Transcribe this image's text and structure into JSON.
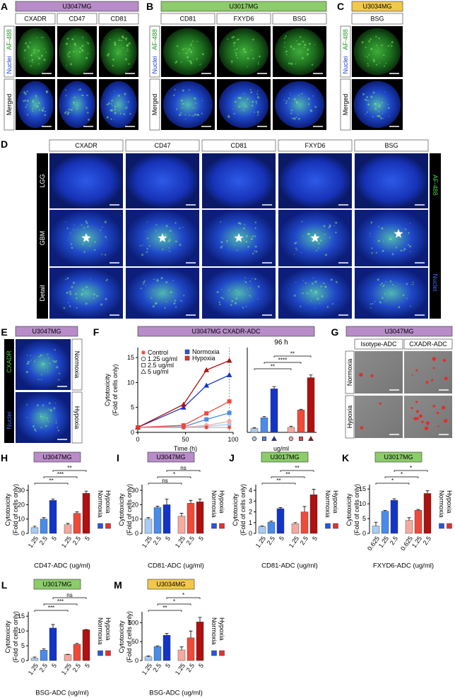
{
  "panels": {
    "A": {
      "letter": "A",
      "cell_line": "U3047MG",
      "tag_color": "#b88cc9",
      "markers": [
        "CXADR",
        "CD47",
        "CD81"
      ],
      "stain_labels": [
        "Nuclei",
        "AF-488"
      ],
      "merged_label": "Merged"
    },
    "B": {
      "letter": "B",
      "cell_line": "U3017MG",
      "tag_color": "#8ccc6a",
      "markers": [
        "CD81",
        "FXYD6",
        "BSG"
      ],
      "stain_labels": [
        "Nuclei",
        "AF-488"
      ],
      "merged_label": "Merged"
    },
    "C": {
      "letter": "C",
      "cell_line": "U3034MG",
      "tag_color": "#f2c84b",
      "markers": [
        "BSG"
      ],
      "stain_labels": [
        "Nuclei",
        "AF-488"
      ],
      "merged_label": "Merged"
    },
    "D": {
      "letter": "D",
      "markers": [
        "CXADR",
        "CD47",
        "CD81",
        "FXYD6",
        "BSG"
      ],
      "row_labels": [
        "LGG",
        "GBM",
        "Detail"
      ],
      "stain_labels": [
        "AF-488",
        "Nuclei"
      ]
    },
    "E": {
      "letter": "E",
      "cell_line": "U3047MG",
      "tag_color": "#b88cc9",
      "stain_labels": [
        "CXADR",
        "Nuclei"
      ],
      "conditions": [
        "Normoxia",
        "Hypoxia"
      ]
    },
    "G": {
      "letter": "G",
      "cell_line": "U3047MG",
      "tag_color": "#b88cc9",
      "columns": [
        "Isotype-ADC",
        "CXADR-ADC"
      ],
      "conditions": [
        "Normoxia",
        "Hypoxia"
      ]
    }
  },
  "chart_data": [
    {
      "type": "line",
      "letter": "F",
      "title": "U3047MG CXADR-ADC",
      "tag_color": "#b88cc9",
      "ylabel": [
        "Cytotoxicity",
        "(Fold of cells only)"
      ],
      "xlabel": "Time (h)",
      "x": [
        0,
        48,
        72,
        96
      ],
      "xlim": [
        0,
        100
      ],
      "xticks": [
        0,
        50,
        100
      ],
      "ylim": [
        0,
        17
      ],
      "yticks": [
        0,
        5,
        10,
        15
      ],
      "control": {
        "name": "Control",
        "color": "#e8403a",
        "values": [
          1,
          1,
          1,
          1
        ]
      },
      "doses": [
        {
          "name": "1.25 ug/ml",
          "marker": "circle"
        },
        {
          "name": "2.5 ug/ml",
          "marker": "square"
        },
        {
          "name": "5 ug/ml",
          "marker": "triangle"
        }
      ],
      "conditions": [
        {
          "name": "Normoxia",
          "color": "#2456e0",
          "colors": [
            "#a9ccf2",
            "#4a8be8",
            "#1434c8"
          ],
          "values": [
            [
              1,
              1,
              1.2,
              1.6
            ],
            [
              1,
              1.1,
              2.6,
              3.9
            ],
            [
              1,
              5,
              9.4,
              11.5
            ]
          ]
        },
        {
          "name": "Hypoxia",
          "color": "#e83030",
          "colors": [
            "#f5aaa0",
            "#ef4a3a",
            "#b01010"
          ],
          "values": [
            [
              1,
              1,
              1.4,
              2.2
            ],
            [
              1,
              1.4,
              3.8,
              6.2
            ],
            [
              1,
              5.6,
              12.5,
              14.4
            ]
          ]
        }
      ]
    },
    {
      "type": "bar",
      "subtitle": "96 h",
      "xlabel": "ug/ml",
      "ylim": [
        0,
        22
      ],
      "values": [
        1,
        3.8,
        11.3,
        1.3,
        5.8,
        14.2
      ],
      "errors": [
        0.2,
        0.3,
        0.6,
        0.3,
        0.2,
        0.7
      ],
      "colors": [
        "#a9ccf2",
        "#4a8be8",
        "#1434c8",
        "#f5aaa0",
        "#ef4a3a",
        "#b01010"
      ],
      "significance": [
        "**",
        "****",
        "**"
      ]
    },
    {
      "type": "bar",
      "letter": "H",
      "cell_line": "U3047MG",
      "tag_color": "#b88cc9",
      "ylabel": [
        "Cytotoxicity",
        "(Fold of cells only)"
      ],
      "xlabel": "CD47-ADC (ug/ml)",
      "categories": [
        "1.25",
        "2.5",
        "5",
        "1.25",
        "2.5",
        "5"
      ],
      "values": [
        4,
        10,
        23,
        6,
        14,
        28
      ],
      "errors": [
        1,
        1,
        1,
        1,
        1,
        1.5
      ],
      "colors": [
        "#a9ccf2",
        "#4a8be8",
        "#1434c8",
        "#f5aaa0",
        "#ef4a3a",
        "#b01010"
      ],
      "legend": [
        {
          "name": "Normoxia",
          "color": "#2456e0"
        },
        {
          "name": "Hypoxia",
          "color": "#e83030"
        }
      ],
      "ylim": [
        0,
        33
      ],
      "yticks": [
        0,
        10,
        20,
        30
      ],
      "significance": [
        "**",
        "***",
        "**"
      ]
    },
    {
      "type": "bar",
      "letter": "I",
      "cell_line": "U3047MG",
      "tag_color": "#b88cc9",
      "ylabel": [
        "Cytotoxicity",
        "(Fold of cells only)"
      ],
      "xlabel": "CD81-ADC (ug/ml)",
      "categories": [
        "1.25",
        "2.5",
        "5",
        "1.25",
        "2.5",
        "5"
      ],
      "values": [
        10,
        18,
        20,
        12,
        21,
        22
      ],
      "errors": [
        1,
        1,
        4,
        2,
        2,
        2
      ],
      "colors": [
        "#a9ccf2",
        "#4a8be8",
        "#1434c8",
        "#f5aaa0",
        "#ef4a3a",
        "#b01010"
      ],
      "legend": [
        {
          "name": "Normoxia",
          "color": "#2456e0"
        },
        {
          "name": "Hypoxia",
          "color": "#e83030"
        }
      ],
      "ylim": [
        0,
        33
      ],
      "yticks": [
        0,
        10,
        20,
        30
      ],
      "significance": [
        "ns",
        "*",
        "ns"
      ]
    },
    {
      "type": "bar",
      "letter": "J",
      "cell_line": "U3017MG",
      "tag_color": "#8ccc6a",
      "ylabel": [
        "Cytotoxicity",
        "(Fold of cells only)"
      ],
      "xlabel": "CD81-ADC (ug/ml)",
      "categories": [
        "1.25",
        "2.5",
        "5",
        "1.25",
        "2.5",
        "5"
      ],
      "values": [
        0.65,
        1.05,
        2.3,
        0.9,
        2.0,
        3.6
      ],
      "errors": [
        0.05,
        0.1,
        0.1,
        0.1,
        0.5,
        0.5
      ],
      "colors": [
        "#a9ccf2",
        "#4a8be8",
        "#1434c8",
        "#f5aaa0",
        "#ef4a3a",
        "#b01010"
      ],
      "legend": [
        {
          "name": "Normoxia",
          "color": "#2456e0"
        },
        {
          "name": "Hypoxia",
          "color": "#e83030"
        }
      ],
      "ylim": [
        0,
        4.4
      ],
      "yticks": [
        0,
        1,
        2,
        3,
        4
      ],
      "significance": [
        "**",
        "**",
        "**"
      ]
    },
    {
      "type": "bar",
      "letter": "K",
      "cell_line": "U3017MG",
      "tag_color": "#8ccc6a",
      "ylabel": [
        "Cytotoxicity",
        "(Fold of cells only)"
      ],
      "xlabel": "FXYD6-ADC (ug/ml)",
      "categories": [
        "0.625",
        "1.25",
        "2.5",
        "0.625",
        "1.25",
        "2.5"
      ],
      "values": [
        2.5,
        7.5,
        11.2,
        4.4,
        7.8,
        13.5
      ],
      "errors": [
        1.3,
        0.3,
        0.5,
        0.9,
        0.3,
        0.9
      ],
      "colors": [
        "#a9ccf2",
        "#4a8be8",
        "#1434c8",
        "#f5aaa0",
        "#ef4a3a",
        "#b01010"
      ],
      "legend": [
        {
          "name": "Normoxia",
          "color": "#2456e0"
        },
        {
          "name": "Hypoxia",
          "color": "#e83030"
        }
      ],
      "ylim": [
        0,
        16
      ],
      "yticks": [
        0,
        5,
        10,
        15
      ],
      "significance": [
        "*",
        "*",
        "*"
      ]
    },
    {
      "type": "bar",
      "letter": "L",
      "cell_line": "U3017MG",
      "tag_color": "#8ccc6a",
      "ylabel": [
        "Cytotoxicity",
        "(Fold of cells only)"
      ],
      "xlabel": "BSG-ADC (ug/ml)",
      "categories": [
        "1.25",
        "2.5",
        "5",
        "1.25",
        "2.5",
        "5"
      ],
      "values": [
        0.8,
        3.5,
        11,
        2,
        5.5,
        10.4
      ],
      "errors": [
        0.4,
        0.5,
        1.2,
        0.1,
        0.3,
        0.1
      ],
      "colors": [
        "#a9ccf2",
        "#4a8be8",
        "#1434c8",
        "#f5aaa0",
        "#ef4a3a",
        "#b01010"
      ],
      "legend": [
        {
          "name": "Normoxia",
          "color": "#2456e0"
        },
        {
          "name": "Hypoxia",
          "color": "#e83030"
        }
      ],
      "ylim": [
        0,
        16
      ],
      "yticks": [
        0,
        5,
        10,
        15
      ],
      "significance": [
        "***",
        "***",
        "ns"
      ]
    },
    {
      "type": "bar",
      "letter": "M",
      "cell_line": "U3034MG",
      "tag_color": "#f2c84b",
      "ylabel": [
        "Cytotoxicity",
        "(Fold of cells only)"
      ],
      "xlabel": "BSG-ADC (ug/ml)",
      "categories": [
        "1.25",
        "2.5",
        "5",
        "1.25",
        "2.5",
        "5"
      ],
      "values": [
        10,
        37,
        67,
        28,
        60,
        102
      ],
      "errors": [
        2,
        2,
        5,
        8,
        18,
        12
      ],
      "colors": [
        "#a9ccf2",
        "#4a8be8",
        "#1434c8",
        "#f5aaa0",
        "#ef4a3a",
        "#b01010"
      ],
      "legend": [
        {
          "name": "Normoxia",
          "color": "#2456e0"
        },
        {
          "name": "Hypoxia",
          "color": "#e83030"
        }
      ],
      "ylim": [
        0,
        125
      ],
      "yticks": [
        0,
        50,
        100
      ],
      "significance": [
        "**",
        "*",
        "*"
      ]
    }
  ]
}
